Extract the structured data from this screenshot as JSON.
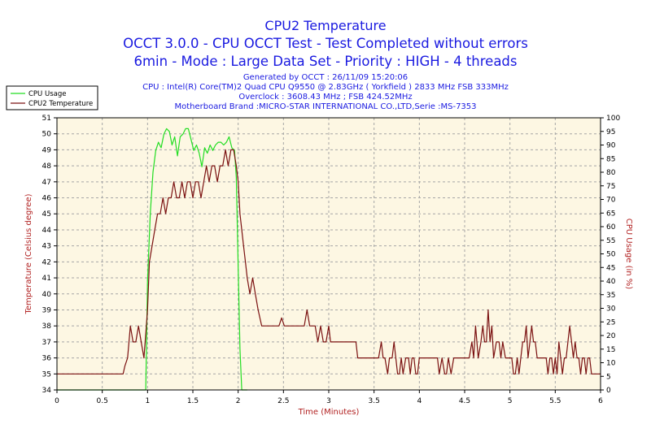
{
  "header": {
    "title": "CPU2 Temperature",
    "subtitle1": "OCCT 3.0.0 - CPU OCCT Test - Test Completed without errors",
    "subtitle2": "6min - Mode : Large Data Set - Priority : HIGH - 4 threads",
    "info": [
      "Generated by OCCT : 26/11/09 15:20:06",
      "CPU : Intel(R) Core(TM)2 Quad CPU Q9550 @ 2.83GHz ( Yorkfield ) 2833 MHz FSB 333MHz",
      "Overclock : 3608.43 MHz ; FSB 424.52MHz",
      "Motherboard Brand :MICRO-STAR INTERNATIONAL CO.,LTD,Serie :MS-7353"
    ]
  },
  "colors": {
    "plot_background": "#fdf7e3",
    "grid": "#a6a6a6",
    "cpu_usage": "#22dd22",
    "temperature": "#7a1010",
    "header_text": "#1a1ae0",
    "axis_label": "#b22222"
  },
  "chart_data": {
    "type": "line",
    "xlabel": "Time (Minutes)",
    "ylabel": "Temperature (Celsius degree)",
    "y2label": "CPU Usage (in %)",
    "xlim": [
      0,
      6
    ],
    "ylim": [
      34,
      51
    ],
    "y2lim": [
      0,
      100
    ],
    "x_ticks": [
      "0",
      "0.5",
      "1",
      "1.5",
      "2",
      "2.5",
      "3",
      "3.5",
      "4",
      "4.5",
      "5",
      "5.5",
      "6"
    ],
    "y_ticks": [
      "34",
      "35",
      "36",
      "37",
      "38",
      "39",
      "40",
      "41",
      "42",
      "43",
      "44",
      "45",
      "46",
      "47",
      "48",
      "49",
      "50",
      "51"
    ],
    "y2_ticks": [
      "0",
      "5",
      "10",
      "15",
      "20",
      "25",
      "30",
      "35",
      "40",
      "45",
      "50",
      "55",
      "60",
      "65",
      "70",
      "75",
      "80",
      "85",
      "90",
      "95",
      "100"
    ],
    "grid": true,
    "legend_position": "top-left",
    "series": [
      {
        "name": "CPU Usage",
        "axis": "right",
        "points": [
          [
            0,
            0
          ],
          [
            0.98,
            0
          ],
          [
            1.0,
            40
          ],
          [
            1.03,
            65
          ],
          [
            1.06,
            80
          ],
          [
            1.09,
            88
          ],
          [
            1.12,
            91
          ],
          [
            1.15,
            89
          ],
          [
            1.18,
            94
          ],
          [
            1.21,
            96
          ],
          [
            1.24,
            95
          ],
          [
            1.27,
            90
          ],
          [
            1.3,
            93
          ],
          [
            1.33,
            86
          ],
          [
            1.36,
            93
          ],
          [
            1.39,
            94
          ],
          [
            1.42,
            96
          ],
          [
            1.45,
            96
          ],
          [
            1.48,
            92
          ],
          [
            1.51,
            88
          ],
          [
            1.54,
            90
          ],
          [
            1.57,
            87
          ],
          [
            1.6,
            82
          ],
          [
            1.63,
            89
          ],
          [
            1.66,
            87
          ],
          [
            1.69,
            90
          ],
          [
            1.72,
            88
          ],
          [
            1.75,
            90
          ],
          [
            1.78,
            91
          ],
          [
            1.81,
            91
          ],
          [
            1.84,
            90
          ],
          [
            1.87,
            91
          ],
          [
            1.9,
            93
          ],
          [
            1.93,
            89
          ],
          [
            1.96,
            88
          ],
          [
            1.98,
            78
          ],
          [
            2.0,
            45
          ],
          [
            2.02,
            15
          ],
          [
            2.04,
            0
          ],
          [
            2.1,
            0
          ]
        ]
      },
      {
        "name": "CPU2 Temperature",
        "axis": "left",
        "points": [
          [
            0,
            35
          ],
          [
            0.73,
            35
          ],
          [
            0.75,
            35.5
          ],
          [
            0.78,
            36
          ],
          [
            0.81,
            38
          ],
          [
            0.84,
            37
          ],
          [
            0.87,
            37
          ],
          [
            0.9,
            38
          ],
          [
            0.93,
            37
          ],
          [
            0.96,
            36
          ],
          [
            1.0,
            39
          ],
          [
            1.02,
            42
          ],
          [
            1.05,
            43
          ],
          [
            1.08,
            44
          ],
          [
            1.11,
            45
          ],
          [
            1.14,
            45
          ],
          [
            1.17,
            46
          ],
          [
            1.2,
            45
          ],
          [
            1.23,
            46
          ],
          [
            1.26,
            46
          ],
          [
            1.29,
            47
          ],
          [
            1.32,
            46
          ],
          [
            1.35,
            46
          ],
          [
            1.38,
            47
          ],
          [
            1.41,
            46
          ],
          [
            1.44,
            47
          ],
          [
            1.47,
            47
          ],
          [
            1.5,
            46
          ],
          [
            1.53,
            47
          ],
          [
            1.56,
            47
          ],
          [
            1.59,
            46
          ],
          [
            1.62,
            47
          ],
          [
            1.65,
            48
          ],
          [
            1.68,
            47
          ],
          [
            1.71,
            48
          ],
          [
            1.74,
            48
          ],
          [
            1.77,
            47
          ],
          [
            1.8,
            48
          ],
          [
            1.83,
            48
          ],
          [
            1.86,
            49
          ],
          [
            1.89,
            48
          ],
          [
            1.92,
            49
          ],
          [
            1.95,
            49
          ],
          [
            1.98,
            48
          ],
          [
            2.0,
            47
          ],
          [
            2.02,
            45
          ],
          [
            2.04,
            44
          ],
          [
            2.06,
            43
          ],
          [
            2.08,
            42
          ],
          [
            2.1,
            41
          ],
          [
            2.13,
            40
          ],
          [
            2.16,
            41
          ],
          [
            2.19,
            40
          ],
          [
            2.22,
            39
          ],
          [
            2.26,
            38
          ],
          [
            2.3,
            38
          ],
          [
            2.34,
            38
          ],
          [
            2.38,
            38
          ],
          [
            2.42,
            38
          ],
          [
            2.45,
            38
          ],
          [
            2.48,
            38.5
          ],
          [
            2.51,
            38
          ],
          [
            2.55,
            38
          ],
          [
            2.6,
            38
          ],
          [
            2.65,
            38
          ],
          [
            2.7,
            38
          ],
          [
            2.73,
            38
          ],
          [
            2.76,
            39
          ],
          [
            2.79,
            38
          ],
          [
            2.82,
            38
          ],
          [
            2.85,
            38
          ],
          [
            2.88,
            37
          ],
          [
            2.91,
            38
          ],
          [
            2.94,
            37
          ],
          [
            2.97,
            37
          ],
          [
            3.0,
            38
          ],
          [
            3.02,
            37
          ],
          [
            3.05,
            37
          ],
          [
            3.1,
            37
          ],
          [
            3.15,
            37
          ],
          [
            3.2,
            37
          ],
          [
            3.25,
            37
          ],
          [
            3.3,
            37
          ],
          [
            3.32,
            36
          ],
          [
            3.35,
            36
          ],
          [
            3.4,
            36
          ],
          [
            3.45,
            36
          ],
          [
            3.48,
            36
          ],
          [
            3.5,
            36
          ],
          [
            3.52,
            36
          ],
          [
            3.55,
            36
          ],
          [
            3.58,
            37
          ],
          [
            3.6,
            36
          ],
          [
            3.62,
            36
          ],
          [
            3.65,
            35
          ],
          [
            3.67,
            36
          ],
          [
            3.7,
            36
          ],
          [
            3.72,
            37
          ],
          [
            3.74,
            36
          ],
          [
            3.76,
            35
          ],
          [
            3.78,
            35
          ],
          [
            3.8,
            36
          ],
          [
            3.82,
            35
          ],
          [
            3.85,
            36
          ],
          [
            3.88,
            36
          ],
          [
            3.9,
            35
          ],
          [
            3.92,
            36
          ],
          [
            3.94,
            36
          ],
          [
            3.96,
            35
          ],
          [
            3.98,
            35
          ],
          [
            4.0,
            36
          ],
          [
            4.05,
            36
          ],
          [
            4.1,
            36
          ],
          [
            4.15,
            36
          ],
          [
            4.2,
            36
          ],
          [
            4.22,
            35
          ],
          [
            4.25,
            36
          ],
          [
            4.28,
            35
          ],
          [
            4.3,
            35
          ],
          [
            4.32,
            36
          ],
          [
            4.35,
            35
          ],
          [
            4.38,
            36
          ],
          [
            4.4,
            36
          ],
          [
            4.45,
            36
          ],
          [
            4.5,
            36
          ],
          [
            4.55,
            36
          ],
          [
            4.58,
            37
          ],
          [
            4.6,
            36
          ],
          [
            4.62,
            38
          ],
          [
            4.65,
            36
          ],
          [
            4.68,
            37
          ],
          [
            4.7,
            38
          ],
          [
            4.72,
            37
          ],
          [
            4.74,
            37
          ],
          [
            4.76,
            39
          ],
          [
            4.78,
            37
          ],
          [
            4.8,
            38
          ],
          [
            4.82,
            36
          ],
          [
            4.85,
            37
          ],
          [
            4.88,
            37
          ],
          [
            4.9,
            36
          ],
          [
            4.92,
            37
          ],
          [
            4.95,
            36
          ],
          [
            4.98,
            36
          ],
          [
            5.0,
            36
          ],
          [
            5.02,
            36
          ],
          [
            5.04,
            35
          ],
          [
            5.06,
            35
          ],
          [
            5.08,
            36
          ],
          [
            5.1,
            35
          ],
          [
            5.12,
            36
          ],
          [
            5.14,
            37
          ],
          [
            5.16,
            37
          ],
          [
            5.18,
            38
          ],
          [
            5.2,
            36
          ],
          [
            5.22,
            37
          ],
          [
            5.24,
            38
          ],
          [
            5.26,
            37
          ],
          [
            5.28,
            37
          ],
          [
            5.3,
            36
          ],
          [
            5.33,
            36
          ],
          [
            5.36,
            36
          ],
          [
            5.4,
            36
          ],
          [
            5.42,
            35
          ],
          [
            5.44,
            36
          ],
          [
            5.46,
            36
          ],
          [
            5.48,
            35
          ],
          [
            5.5,
            36
          ],
          [
            5.52,
            35
          ],
          [
            5.54,
            37
          ],
          [
            5.56,
            36
          ],
          [
            5.58,
            35
          ],
          [
            5.6,
            36
          ],
          [
            5.62,
            36
          ],
          [
            5.64,
            37
          ],
          [
            5.66,
            38
          ],
          [
            5.68,
            37
          ],
          [
            5.7,
            36
          ],
          [
            5.72,
            37
          ],
          [
            5.74,
            36
          ],
          [
            5.76,
            36
          ],
          [
            5.78,
            35
          ],
          [
            5.8,
            36
          ],
          [
            5.82,
            36
          ],
          [
            5.84,
            35
          ],
          [
            5.86,
            36
          ],
          [
            5.88,
            36
          ],
          [
            5.9,
            35
          ],
          [
            5.92,
            35
          ],
          [
            5.95,
            35
          ],
          [
            5.98,
            35
          ],
          [
            6.0,
            35
          ]
        ]
      }
    ]
  }
}
